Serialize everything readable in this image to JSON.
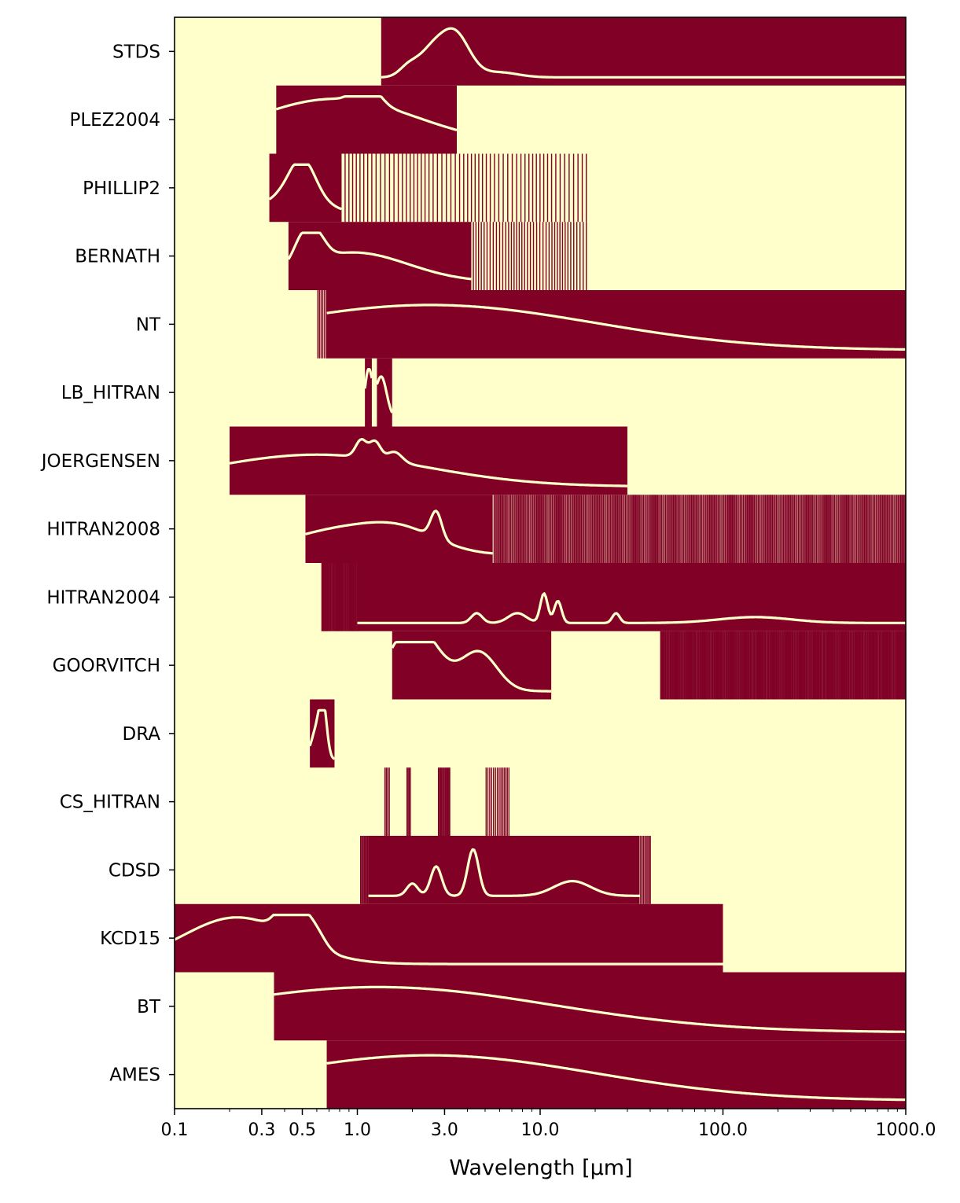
{
  "chart_data": {
    "type": "heatmap",
    "title": "",
    "xlabel": "Wavelength [µm]",
    "ylabel": "",
    "x_scale": "log",
    "xlim": [
      0.1,
      1000
    ],
    "x_ticks": [
      0.1,
      0.3,
      0.5,
      1.0,
      3.0,
      10.0,
      100.0,
      1000.0
    ],
    "x_tick_labels": [
      "0.1",
      "0.3",
      "0.5",
      "1.0",
      "3.0",
      "10.0",
      "100.0",
      "1000.0"
    ],
    "grid": false,
    "legend": "none",
    "colors": {
      "background": "#ffffcc",
      "coverage": "#800026",
      "spectrum": "#ffffcc"
    },
    "rows": [
      {
        "name": "STDS",
        "bands": [
          [
            1.35,
            1000
          ]
        ],
        "comb": [],
        "peaks": [
          [
            1.9,
            0.2,
            0.05
          ],
          [
            2.5,
            0.45,
            0.07
          ],
          [
            3.4,
            0.9,
            0.08
          ],
          [
            6.0,
            0.1,
            0.1
          ]
        ]
      },
      {
        "name": "PLEZ2004",
        "bands": [
          [
            0.36,
            3.5
          ]
        ],
        "comb": [],
        "peaks": [
          [
            0.75,
            0.95,
            0.45
          ],
          [
            1.05,
            0.3,
            0.05
          ],
          [
            1.25,
            0.2,
            0.05
          ]
        ]
      },
      {
        "name": "PHILLIP2",
        "bands": [
          [
            0.33,
            0.82
          ]
        ],
        "comb": [
          [
            0.82,
            18,
            60
          ]
        ],
        "peaks": [
          [
            0.5,
            0.75,
            0.07
          ],
          [
            0.45,
            0.4,
            0.15
          ]
        ]
      },
      {
        "name": "BERNATH",
        "bands": [
          [
            0.42,
            4.2
          ]
        ],
        "comb": [
          [
            4.2,
            18,
            40
          ]
        ],
        "peaks": [
          [
            0.5,
            0.5,
            0.05
          ],
          [
            0.6,
            0.45,
            0.05
          ],
          [
            0.95,
            0.6,
            0.3
          ]
        ]
      },
      {
        "name": "NT",
        "bands": [
          [
            0.68,
            1000
          ]
        ],
        "comb": [
          [
            0.6,
            0.68,
            6
          ],
          [
            620,
            1000,
            15
          ]
        ],
        "peaks": [
          [
            2.5,
            0.92,
            0.9
          ]
        ]
      },
      {
        "name": "LB_HITRAN",
        "bands": [
          [
            1.1,
            1.2
          ],
          [
            1.28,
            1.55
          ]
        ],
        "comb": [],
        "peaks": [
          [
            1.15,
            0.95,
            0.02
          ],
          [
            1.35,
            0.85,
            0.03
          ]
        ]
      },
      {
        "name": "JOERGENSEN",
        "bands": [
          [
            0.2,
            30
          ]
        ],
        "comb": [],
        "peaks": [
          [
            0.6,
            0.65,
            0.6
          ],
          [
            1.05,
            0.35,
            0.03
          ],
          [
            1.25,
            0.35,
            0.03
          ],
          [
            1.6,
            0.2,
            0.04
          ]
        ]
      },
      {
        "name": "HITRAN2008",
        "bands": [
          [
            0.52,
            5.5
          ]
        ],
        "comb": [
          [
            5.5,
            1000,
            320
          ]
        ],
        "peaks": [
          [
            0.8,
            0.5,
            0.3
          ],
          [
            2.7,
            0.55,
            0.03
          ],
          [
            1.8,
            0.35,
            0.2
          ]
        ]
      },
      {
        "name": "HITRAN2004",
        "bands": [
          [
            1.0,
            1000
          ]
        ],
        "comb": [
          [
            0.63,
            1.0,
            40
          ]
        ],
        "peaks": [
          [
            10.5,
            0.6,
            0.02
          ],
          [
            12.5,
            0.45,
            0.02
          ],
          [
            26,
            0.2,
            0.02
          ],
          [
            4.5,
            0.2,
            0.03
          ],
          [
            7.5,
            0.2,
            0.05
          ],
          [
            150,
            0.12,
            0.2
          ]
        ]
      },
      {
        "name": "GOORVITCH",
        "bands": [
          [
            1.55,
            11.5
          ]
        ],
        "comb": [
          [
            45,
            1000,
            260
          ]
        ],
        "peaks": [
          [
            1.75,
            0.85,
            0.1
          ],
          [
            2.4,
            0.85,
            0.1
          ],
          [
            4.6,
            0.8,
            0.1
          ]
        ]
      },
      {
        "name": "DRA",
        "bands": [
          [
            0.55,
            0.75
          ]
        ],
        "comb": [],
        "peaks": [
          [
            0.6,
            0.6,
            0.03
          ],
          [
            0.65,
            0.95,
            0.02
          ]
        ]
      },
      {
        "name": "CS_HITRAN",
        "bands": [],
        "comb": [
          [
            1.4,
            1.5,
            4
          ],
          [
            1.85,
            1.95,
            4
          ],
          [
            2.75,
            3.2,
            12
          ],
          [
            5.0,
            6.8,
            14
          ]
        ],
        "peaks": [
          [
            1.45,
            0.7,
            0.02
          ],
          [
            1.9,
            0.4,
            0.02
          ],
          [
            2.9,
            0.3,
            0.02
          ],
          [
            5.3,
            0.3,
            0.02
          ]
        ]
      },
      {
        "name": "CDSD",
        "bands": [
          [
            1.15,
            35
          ]
        ],
        "comb": [
          [
            1.03,
            1.15,
            8
          ],
          [
            35,
            40,
            8
          ]
        ],
        "peaks": [
          [
            2.0,
            0.25,
            0.03
          ],
          [
            2.7,
            0.6,
            0.03
          ],
          [
            4.3,
            0.95,
            0.03
          ],
          [
            15,
            0.3,
            0.1
          ]
        ]
      },
      {
        "name": "KCD15",
        "bands": [
          [
            0.1,
            100
          ]
        ],
        "comb": [],
        "peaks": [
          [
            0.22,
            0.95,
            0.3
          ],
          [
            0.5,
            0.5,
            0.05
          ],
          [
            0.4,
            0.5,
            0.05
          ],
          [
            0.6,
            0.3,
            0.05
          ]
        ]
      },
      {
        "name": "BT",
        "bands": [
          [
            0.35,
            1000
          ]
        ],
        "comb": [],
        "peaks": [
          [
            1.3,
            0.92,
            0.95
          ]
        ]
      },
      {
        "name": "AMES",
        "bands": [
          [
            0.68,
            1000
          ]
        ],
        "comb": [],
        "peaks": [
          [
            2.5,
            0.92,
            0.9
          ]
        ]
      }
    ]
  }
}
